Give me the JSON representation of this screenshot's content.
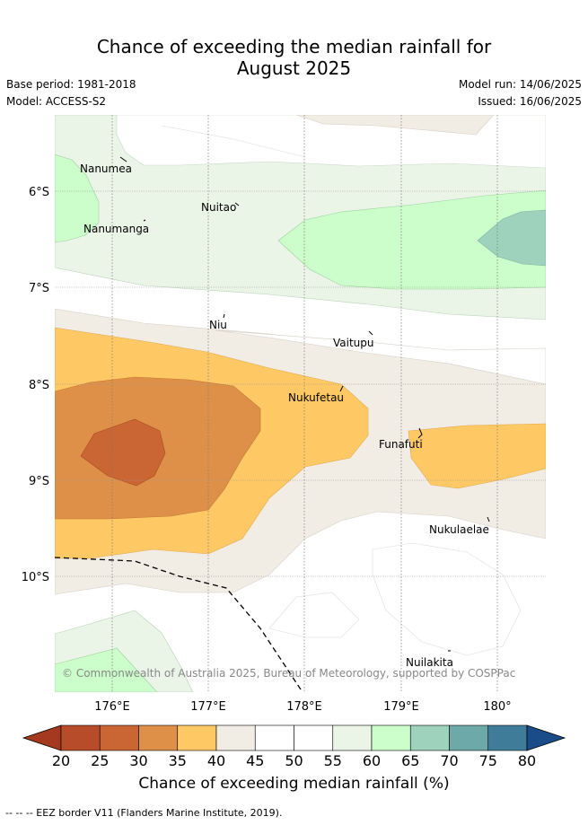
{
  "title": {
    "line1": "Chance of exceeding the median rainfall for",
    "line2": "August 2025"
  },
  "meta": {
    "base_period": "Base period: 1981-2018",
    "model": "Model: ACCESS-S2",
    "model_run": "Model run: 14/06/2025",
    "issued": "Issued: 16/06/2025"
  },
  "map": {
    "lat_ticks": [
      "6°S",
      "7°S",
      "8°S",
      "9°S",
      "10°S"
    ],
    "lon_ticks": [
      "176°E",
      "177°E",
      "178°E",
      "179°E",
      "180°"
    ],
    "places": [
      {
        "name": "Nanumea"
      },
      {
        "name": "Nuitao"
      },
      {
        "name": "Nanumanga"
      },
      {
        "name": "Niu"
      },
      {
        "name": "Vaitupu"
      },
      {
        "name": "Nukufetau"
      },
      {
        "name": "Funafuti"
      },
      {
        "name": "Nukulaelae"
      },
      {
        "name": "Nuilakita"
      }
    ],
    "copyright": "© Commonwealth of Australia 2025, Bureau of Meteorology, supported by COSPPac"
  },
  "colorbar": {
    "ticks": [
      "20",
      "25",
      "30",
      "35",
      "40",
      "45",
      "50",
      "55",
      "60",
      "65",
      "70",
      "75",
      "80"
    ],
    "colors": [
      "#a5391f",
      "#b64c2a",
      "#ca6534",
      "#df9048",
      "#fec965",
      "#f1ece4",
      "#ffffff",
      "#ffffff",
      "#eaf5e8",
      "#cbfeca",
      "#9ed2bd",
      "#6ea9a9",
      "#3f7c9a",
      "#1a4d87"
    ],
    "label": "Chance of exceeding median rainfall (%)"
  },
  "legend_note": "-- -- -- EEZ border V11 (Flanders Marine Institute, 2019)."
}
